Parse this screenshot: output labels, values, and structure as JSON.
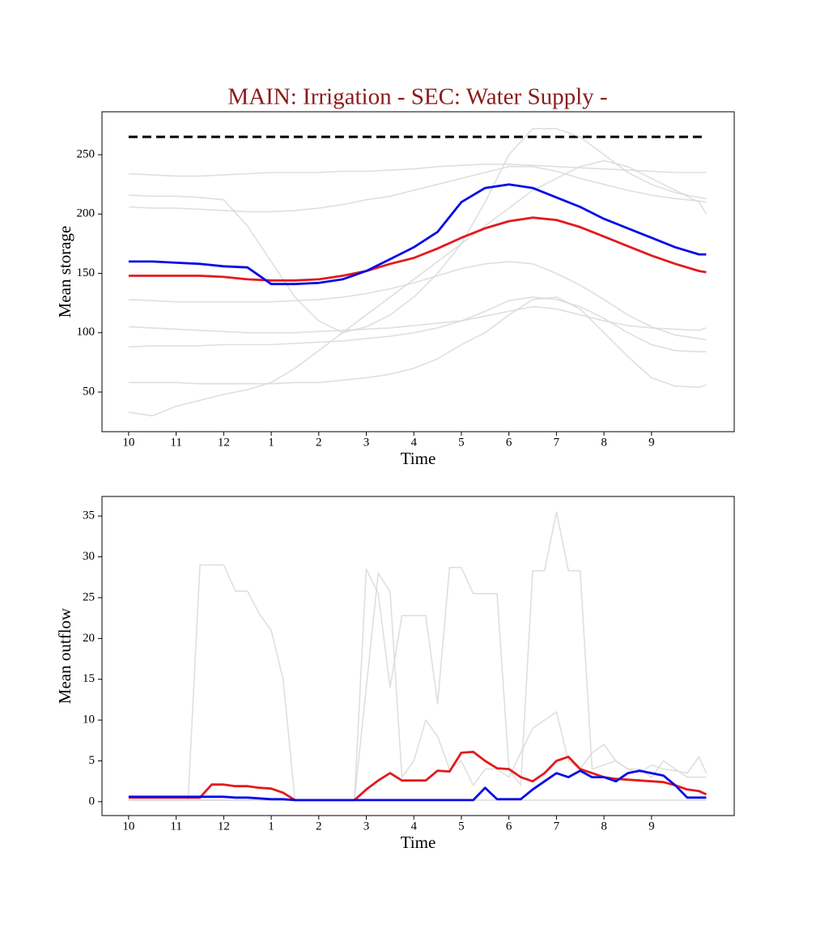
{
  "chart_data": [
    {
      "type": "line",
      "title": "MAIN: Irrigation - SEC: Water Supply -",
      "title_color": "#8b1a1a",
      "x_label": "Time",
      "y_label": "Mean storage",
      "x": [
        0,
        0.5,
        1,
        1.5,
        2,
        2.5,
        3,
        3.5,
        4,
        4.5,
        5,
        5.5,
        6,
        6.5,
        7,
        7.5,
        8,
        8.5,
        9,
        9.5,
        10,
        10.5,
        11,
        11.5,
        12,
        12.15
      ],
      "xlim": [
        -0.56,
        12.74
      ],
      "xticks": [
        {
          "value": 0,
          "label": "10"
        },
        {
          "value": 1,
          "label": "11"
        },
        {
          "value": 2,
          "label": "12"
        },
        {
          "value": 3,
          "label": "1"
        },
        {
          "value": 4,
          "label": "2"
        },
        {
          "value": 5,
          "label": "3"
        },
        {
          "value": 6,
          "label": "4"
        },
        {
          "value": 7,
          "label": "5"
        },
        {
          "value": 8,
          "label": "6"
        },
        {
          "value": 9,
          "label": "7"
        },
        {
          "value": 10,
          "label": "8"
        },
        {
          "value": 11,
          "label": "9"
        }
      ],
      "ylim": [
        16.6,
        286.2
      ],
      "yticks": [
        50,
        100,
        150,
        200,
        250
      ],
      "threshold": 265,
      "threshold_color": "#000000",
      "series": [
        {
          "color": "#d9d9d9",
          "values": [
            234,
            233,
            232,
            232,
            233,
            234,
            235,
            235,
            235,
            236,
            236,
            237,
            238,
            240,
            241,
            242,
            242,
            241,
            240,
            239,
            238,
            237,
            236,
            235,
            235,
            235
          ]
        },
        {
          "color": "#d9d9d9",
          "values": [
            216,
            215,
            215,
            214,
            212,
            190,
            160,
            130,
            110,
            100,
            105,
            115,
            130,
            150,
            175,
            210,
            250,
            272,
            272,
            265,
            250,
            235,
            225,
            218,
            214,
            213
          ]
        },
        {
          "color": "#d9d9d9",
          "values": [
            206,
            205,
            205,
            204,
            203,
            202,
            202,
            203,
            205,
            208,
            212,
            215,
            220,
            225,
            230,
            235,
            240,
            240,
            236,
            230,
            225,
            220,
            216,
            213,
            211,
            210
          ]
        },
        {
          "color": "#d9d9d9",
          "values": [
            128,
            127,
            126,
            126,
            126,
            126,
            126,
            127,
            128,
            130,
            133,
            137,
            142,
            148,
            154,
            158,
            160,
            158,
            150,
            140,
            128,
            115,
            105,
            98,
            95,
            94
          ]
        },
        {
          "color": "#d9d9d9",
          "values": [
            105,
            104,
            103,
            102,
            101,
            100,
            100,
            100,
            101,
            102,
            103,
            104,
            106,
            108,
            110,
            114,
            118,
            122,
            120,
            115,
            110,
            106,
            104,
            103,
            102,
            104
          ]
        },
        {
          "color": "#d9d9d9",
          "values": [
            88,
            89,
            89,
            89,
            90,
            90,
            90,
            91,
            92,
            93,
            95,
            97,
            100,
            104,
            110,
            118,
            127,
            130,
            128,
            122,
            112,
            100,
            90,
            85,
            84,
            84
          ]
        },
        {
          "color": "#d9d9d9",
          "values": [
            33,
            30,
            38,
            43,
            48,
            52,
            58,
            70,
            85,
            100,
            115,
            130,
            145,
            160,
            175,
            190,
            205,
            220,
            230,
            240,
            245,
            240,
            230,
            220,
            210,
            200
          ]
        },
        {
          "color": "#d9d9d9",
          "values": [
            58,
            58,
            58,
            57,
            57,
            57,
            57,
            58,
            58,
            60,
            62,
            65,
            70,
            78,
            90,
            100,
            115,
            128,
            130,
            120,
            100,
            80,
            62,
            55,
            54,
            56
          ]
        },
        {
          "color": "#e31a1c",
          "values": [
            148,
            148,
            148,
            148,
            147,
            145,
            144,
            144,
            145,
            148,
            152,
            158,
            163,
            171,
            180,
            188,
            194,
            197,
            195,
            189,
            181,
            173,
            165,
            158,
            152,
            151
          ]
        },
        {
          "color": "#0a0ae6",
          "values": [
            160,
            160,
            159,
            158,
            156,
            155,
            141,
            141,
            142,
            145,
            152,
            162,
            172,
            185,
            210,
            222,
            225,
            222,
            214,
            206,
            196,
            188,
            180,
            172,
            166,
            166
          ]
        }
      ]
    },
    {
      "type": "line",
      "x_label": "Time",
      "y_label": "Mean outflow",
      "x": [
        0,
        0.25,
        0.5,
        0.75,
        1,
        1.25,
        1.5,
        1.75,
        2,
        2.25,
        2.5,
        2.75,
        3,
        3.25,
        3.5,
        3.75,
        4,
        4.25,
        4.5,
        4.75,
        5,
        5.25,
        5.5,
        5.75,
        6,
        6.25,
        6.5,
        6.75,
        7,
        7.25,
        7.5,
        7.75,
        8,
        8.25,
        8.5,
        8.75,
        9,
        9.25,
        9.5,
        9.75,
        10,
        10.25,
        10.5,
        10.75,
        11,
        11.25,
        11.5,
        11.75,
        12,
        12.15
      ],
      "xlim": [
        -0.56,
        12.74
      ],
      "xticks": [
        {
          "value": 0,
          "label": "10"
        },
        {
          "value": 1,
          "label": "11"
        },
        {
          "value": 2,
          "label": "12"
        },
        {
          "value": 3,
          "label": "1"
        },
        {
          "value": 4,
          "label": "2"
        },
        {
          "value": 5,
          "label": "3"
        },
        {
          "value": 6,
          "label": "4"
        },
        {
          "value": 7,
          "label": "5"
        },
        {
          "value": 8,
          "label": "6"
        },
        {
          "value": 9,
          "label": "7"
        },
        {
          "value": 10,
          "label": "8"
        },
        {
          "value": 11,
          "label": "9"
        }
      ],
      "ylim": [
        -1.7,
        37.4
      ],
      "yticks": [
        0,
        5,
        10,
        15,
        20,
        25,
        30,
        35
      ],
      "series": [
        {
          "color": "#d9d9d9",
          "values": [
            0.2,
            0.2,
            0.2,
            0.2,
            0.2,
            0.2,
            29,
            29,
            29,
            25.8,
            25.8,
            23,
            21,
            15,
            0.2,
            0.2,
            0.2,
            0.2,
            0.2,
            0.2,
            0.2,
            0.2,
            0.2,
            0.2,
            0.2,
            0.2,
            0.2,
            0.2,
            0.2,
            0.2,
            0.2,
            0.2,
            0.2,
            0.2,
            0.2,
            0.2,
            0.2,
            0.2,
            0.2,
            0.2,
            0.2,
            0.2,
            0.2,
            0.2,
            0.2,
            0.2,
            0.2,
            0.2,
            0.2,
            0.2
          ]
        },
        {
          "color": "#d9d9d9",
          "values": [
            0.2,
            0.2,
            0.2,
            0.2,
            0.2,
            0.2,
            0.2,
            0.2,
            0.2,
            0.2,
            0.2,
            0.2,
            0.2,
            0.2,
            0.2,
            0.2,
            0.2,
            0.2,
            0.2,
            0.2,
            28.5,
            25.5,
            14,
            22.8,
            22.8,
            22.8,
            12,
            28.7,
            28.7,
            25.5,
            25.5,
            25.5,
            4,
            2,
            28.3,
            28.3,
            35.5,
            28.3,
            28.3,
            4,
            4.5,
            5,
            4,
            3.5,
            4.5,
            4,
            3.8,
            3.5,
            5.5,
            3.5
          ]
        },
        {
          "color": "#d9d9d9",
          "values": [
            0.2,
            0.2,
            0.2,
            0.2,
            0.2,
            0.2,
            0.2,
            0.2,
            0.2,
            0.2,
            0.2,
            0.2,
            0.2,
            0.2,
            0.2,
            0.2,
            0.2,
            0.2,
            0.2,
            0.2,
            14,
            28,
            25.7,
            3,
            5,
            10,
            8,
            4,
            5,
            2,
            4,
            4,
            3,
            6,
            9,
            10,
            11,
            5,
            4,
            6,
            7,
            5,
            4,
            4,
            3,
            5,
            4,
            3,
            3,
            3
          ]
        },
        {
          "color": "#e31a1c",
          "values": [
            0.5,
            0.5,
            0.5,
            0.5,
            0.5,
            0.5,
            0.5,
            2.1,
            2.1,
            1.9,
            1.9,
            1.7,
            1.6,
            1.1,
            0.2,
            0.2,
            0.2,
            0.2,
            0.2,
            0.2,
            1.5,
            2.6,
            3.5,
            2.6,
            2.6,
            2.6,
            3.8,
            3.7,
            6.0,
            6.1,
            5.0,
            4.1,
            4.0,
            3.0,
            2.5,
            3.5,
            5.0,
            5.5,
            4.0,
            3.5,
            3.0,
            2.8,
            2.7,
            2.6,
            2.5,
            2.4,
            2.0,
            1.5,
            1.3,
            0.9
          ]
        },
        {
          "color": "#0a0ae6",
          "values": [
            0.6,
            0.6,
            0.6,
            0.6,
            0.6,
            0.6,
            0.6,
            0.6,
            0.6,
            0.5,
            0.5,
            0.4,
            0.3,
            0.3,
            0.2,
            0.2,
            0.2,
            0.2,
            0.2,
            0.2,
            0.2,
            0.2,
            0.2,
            0.2,
            0.2,
            0.2,
            0.2,
            0.2,
            0.2,
            0.2,
            1.7,
            0.3,
            0.3,
            0.3,
            1.5,
            2.5,
            3.5,
            3.0,
            3.8,
            3.0,
            3.0,
            2.5,
            3.5,
            3.8,
            3.5,
            3.2,
            2.0,
            0.5,
            0.5,
            0.5
          ]
        }
      ]
    }
  ]
}
